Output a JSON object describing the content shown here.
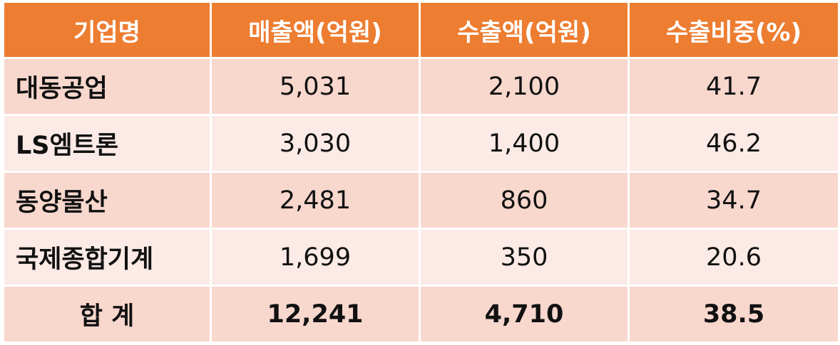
{
  "table": {
    "headers": [
      "기업명",
      "매출액(억원)",
      "수출액(억원)",
      "수출비중(%)"
    ],
    "rows": [
      [
        "대동공업",
        "5,031",
        "2,100",
        "41.7"
      ],
      [
        "LS엠트론",
        "3,030",
        "1,400",
        "46.2"
      ],
      [
        "동양물산",
        "2,481",
        "860",
        "34.7"
      ],
      [
        "국제종합기계",
        "1,699",
        "350",
        "20.6"
      ]
    ],
    "total": [
      "합 계",
      "12,241",
      "4,710",
      "38.5"
    ]
  },
  "colors": {
    "header_bg": "#ed7d31",
    "row_dark": "#f8d7cd",
    "row_light": "#fbeae6"
  }
}
